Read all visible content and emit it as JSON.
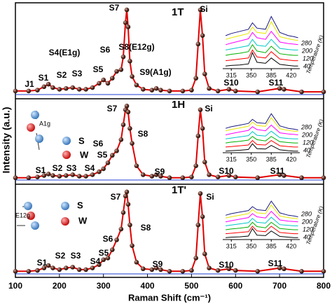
{
  "chart_data": [
    {
      "type": "line",
      "label": "1T",
      "x": [
        100,
        130,
        150,
        165,
        175,
        185,
        200,
        215,
        230,
        245,
        260,
        275,
        290,
        300,
        310,
        320,
        330,
        340,
        345,
        350,
        353,
        356,
        360,
        365,
        375,
        390,
        410,
        420,
        430,
        450,
        480,
        500,
        510,
        515,
        520,
        525,
        530,
        540,
        560,
        585,
        600,
        650,
        700,
        710,
        750,
        800
      ],
      "series": [
        {
          "color": "#e00000",
          "values": [
            5,
            5,
            6,
            10,
            13,
            9,
            7,
            8,
            9,
            7,
            7,
            9,
            14,
            18,
            14,
            20,
            28,
            30,
            45,
            85,
            100,
            80,
            40,
            22,
            12,
            7,
            6,
            8,
            6,
            5,
            5,
            6,
            20,
            60,
            100,
            70,
            25,
            8,
            5,
            7,
            5,
            4,
            8,
            7,
            4,
            4
          ]
        }
      ],
      "ylim": [
        0,
        105
      ],
      "annotations": [
        "S7",
        "Si",
        "S4(E1g)",
        "S6",
        "S8(E12g)",
        "S5",
        "J1",
        "S1",
        "S2",
        "S3",
        "S9(A1g)",
        "S10",
        "S11"
      ],
      "inset": {
        "xlim": [
          300,
          435
        ],
        "xticks": [
          315,
          350,
          385,
          420
        ],
        "ylim": [
          0,
          100
        ],
        "temperatures": [
          "280",
          "200",
          "120",
          "40"
        ],
        "temperature_label": "Temperature (K)",
        "x": [
          305,
          315,
          330,
          345,
          352,
          360,
          375,
          385,
          400,
          415,
          425,
          432
        ],
        "series": [
          {
            "color": "#000000",
            "values": [
              5,
              6,
              7,
              9,
              30,
              12,
              10,
              20,
              8,
              6,
              5,
              5
            ]
          },
          {
            "color": "#ff0000",
            "values": [
              15,
              16,
              18,
              20,
              35,
              22,
              20,
              32,
              18,
              16,
              15,
              15
            ]
          },
          {
            "color": "#00b000",
            "values": [
              25,
              27,
              29,
              32,
              45,
              33,
              30,
              42,
              28,
              26,
              25,
              25
            ]
          },
          {
            "color": "#00c8c8",
            "values": [
              35,
              37,
              40,
              43,
              55,
              44,
              42,
              55,
              38,
              36,
              35,
              35
            ]
          },
          {
            "color": "#ff00ff",
            "values": [
              45,
              48,
              52,
              56,
              68,
              58,
              55,
              70,
              50,
              47,
              46,
              45
            ]
          },
          {
            "color": "#e8e800",
            "values": [
              55,
              58,
              62,
              66,
              78,
              68,
              66,
              88,
              60,
              56,
              54,
              53
            ]
          },
          {
            "color": "#1a1a80",
            "values": [
              62,
              66,
              70,
              74,
              86,
              76,
              74,
              98,
              68,
              62,
              60,
              58
            ]
          }
        ]
      }
    },
    {
      "type": "line",
      "label": "1H",
      "ylabel": "Intensity (a.u.)",
      "x": [
        100,
        130,
        150,
        165,
        175,
        185,
        200,
        215,
        230,
        245,
        260,
        275,
        290,
        300,
        310,
        320,
        330,
        340,
        345,
        350,
        353,
        356,
        360,
        365,
        375,
        390,
        410,
        420,
        430,
        450,
        480,
        500,
        510,
        515,
        520,
        525,
        530,
        540,
        560,
        585,
        600,
        650,
        700,
        710,
        750,
        800
      ],
      "series": [
        {
          "color": "#e00000",
          "values": [
            4,
            4,
            5,
            7,
            9,
            7,
            6,
            7,
            8,
            6,
            6,
            8,
            12,
            16,
            24,
            34,
            40,
            55,
            75,
            95,
            100,
            92,
            70,
            50,
            20,
            8,
            6,
            8,
            6,
            4,
            4,
            5,
            20,
            60,
            95,
            70,
            25,
            8,
            5,
            7,
            5,
            4,
            8,
            7,
            4,
            4
          ]
        }
      ],
      "ylim": [
        0,
        105
      ],
      "annotations": [
        "S7",
        "Si",
        "S6",
        "S8",
        "S5",
        "S4",
        "S1",
        "S2",
        "S3",
        "S9",
        "S10",
        "S11"
      ],
      "legend_atoms": [
        "S",
        "W"
      ],
      "mode": "A1g",
      "inset": {
        "xlim": [
          300,
          435
        ],
        "xticks": [
          315,
          350,
          385,
          420
        ],
        "ylim": [
          0,
          100
        ],
        "temperatures": [
          "280",
          "200",
          "120",
          "40"
        ],
        "temperature_label": "Temperature (K)",
        "x": [
          305,
          315,
          330,
          345,
          352,
          360,
          375,
          385,
          400,
          415,
          425,
          432
        ],
        "series": [
          {
            "color": "#000000",
            "values": [
              4,
              5,
              6,
              8,
              22,
              10,
              9,
              18,
              7,
              5,
              4,
              4
            ]
          },
          {
            "color": "#ff0000",
            "values": [
              14,
              15,
              17,
              19,
              30,
              20,
              19,
              30,
              17,
              15,
              14,
              14
            ]
          },
          {
            "color": "#00b000",
            "values": [
              24,
              26,
              28,
              31,
              40,
              32,
              29,
              40,
              27,
              25,
              24,
              24
            ]
          },
          {
            "color": "#00c8c8",
            "values": [
              34,
              36,
              39,
              42,
              52,
              43,
              41,
              53,
              37,
              35,
              34,
              34
            ]
          },
          {
            "color": "#ff00ff",
            "values": [
              44,
              47,
              51,
              55,
              64,
              57,
              54,
              68,
              49,
              46,
              45,
              44
            ]
          },
          {
            "color": "#e8e800",
            "values": [
              54,
              57,
              61,
              65,
              75,
              67,
              65,
              86,
              59,
              55,
              53,
              52
            ]
          },
          {
            "color": "#1a1a80",
            "values": [
              60,
              64,
              68,
              72,
              82,
              74,
              72,
              96,
              66,
              60,
              58,
              56
            ]
          }
        ]
      }
    },
    {
      "type": "line",
      "label": "1T'",
      "xlabel": "Raman Shift (cm⁻¹)",
      "xlim": [
        100,
        800
      ],
      "xticks": [
        100,
        200,
        300,
        400,
        500,
        600,
        700,
        800
      ],
      "x": [
        100,
        130,
        150,
        165,
        175,
        185,
        200,
        215,
        230,
        245,
        260,
        275,
        290,
        300,
        310,
        320,
        330,
        340,
        345,
        350,
        353,
        356,
        360,
        365,
        375,
        390,
        410,
        420,
        430,
        450,
        480,
        500,
        510,
        515,
        520,
        525,
        530,
        540,
        560,
        585,
        600,
        650,
        700,
        710,
        750,
        800
      ],
      "series": [
        {
          "color": "#e00000",
          "values": [
            4,
            4,
            5,
            8,
            11,
            8,
            6,
            8,
            9,
            6,
            6,
            8,
            12,
            18,
            20,
            30,
            42,
            55,
            75,
            95,
            100,
            85,
            60,
            35,
            15,
            7,
            6,
            8,
            6,
            4,
            4,
            5,
            20,
            60,
            98,
            70,
            25,
            8,
            5,
            7,
            5,
            4,
            8,
            7,
            4,
            4
          ]
        }
      ],
      "ylim": [
        0,
        105
      ],
      "annotations": [
        "S7",
        "Si",
        "S8",
        "S6",
        "S5",
        "S4",
        "S1",
        "S2",
        "S3",
        "S9",
        "S10",
        "S11"
      ],
      "legend_atoms": [
        "S",
        "W"
      ],
      "mode": "E12g",
      "inset": {
        "xlim": [
          300,
          435
        ],
        "xticks": [
          315,
          350,
          385,
          420
        ],
        "ylim": [
          0,
          100
        ],
        "temperatures": [
          "280",
          "200",
          "120",
          "40"
        ],
        "temperature_label": "Temperature (K)",
        "x": [
          305,
          315,
          330,
          345,
          352,
          360,
          375,
          385,
          400,
          415,
          425,
          432
        ],
        "series": [
          {
            "color": "#000000",
            "values": [
              5,
              6,
              7,
              9,
              28,
              11,
              10,
              22,
              8,
              6,
              5,
              5
            ]
          },
          {
            "color": "#ff0000",
            "values": [
              15,
              16,
              18,
              20,
              34,
              22,
              20,
              34,
              18,
              16,
              15,
              15
            ]
          },
          {
            "color": "#00b000",
            "values": [
              25,
              27,
              29,
              32,
              44,
              33,
              30,
              44,
              28,
              26,
              25,
              25
            ]
          },
          {
            "color": "#00c8c8",
            "values": [
              35,
              37,
              40,
              43,
              54,
              44,
              42,
              57,
              38,
              36,
              35,
              35
            ]
          },
          {
            "color": "#ff00ff",
            "values": [
              45,
              48,
              52,
              56,
              66,
              58,
              55,
              72,
              50,
              47,
              46,
              45
            ]
          },
          {
            "color": "#e8e800",
            "values": [
              55,
              58,
              62,
              66,
              76,
              68,
              66,
              88,
              60,
              56,
              54,
              53
            ]
          },
          {
            "color": "#1a1a80",
            "values": [
              62,
              66,
              70,
              74,
              84,
              76,
              74,
              98,
              68,
              62,
              60,
              58
            ]
          }
        ]
      }
    }
  ]
}
